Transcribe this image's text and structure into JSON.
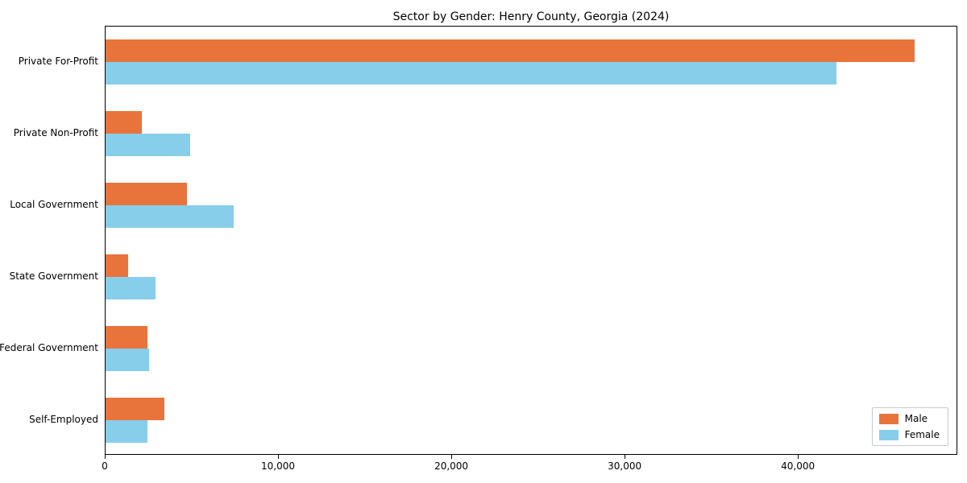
{
  "chart_data": {
    "type": "bar",
    "orientation": "horizontal",
    "title": "Sector by Gender: Henry County, Georgia (2024)",
    "categories": [
      "Private For-Profit",
      "Private Non-Profit",
      "Local Government",
      "State Government",
      "Federal Government",
      "Self-Employed"
    ],
    "series": [
      {
        "name": "Male",
        "color": "#e8743b",
        "values": [
          46700,
          2100,
          4700,
          1300,
          2400,
          3400
        ]
      },
      {
        "name": "Female",
        "color": "#87ceeb",
        "values": [
          42200,
          4900,
          7400,
          2900,
          2500,
          2400
        ]
      }
    ],
    "xlim": [
      0,
      49200
    ],
    "xticks": [
      {
        "value": 0,
        "label": "0"
      },
      {
        "value": 10000,
        "label": "10,000"
      },
      {
        "value": 20000,
        "label": "20,000"
      },
      {
        "value": 30000,
        "label": "30,000"
      },
      {
        "value": 40000,
        "label": "40,000"
      }
    ],
    "legend": {
      "position": "lower-right",
      "entries": [
        "Male",
        "Female"
      ]
    },
    "grid": false
  }
}
